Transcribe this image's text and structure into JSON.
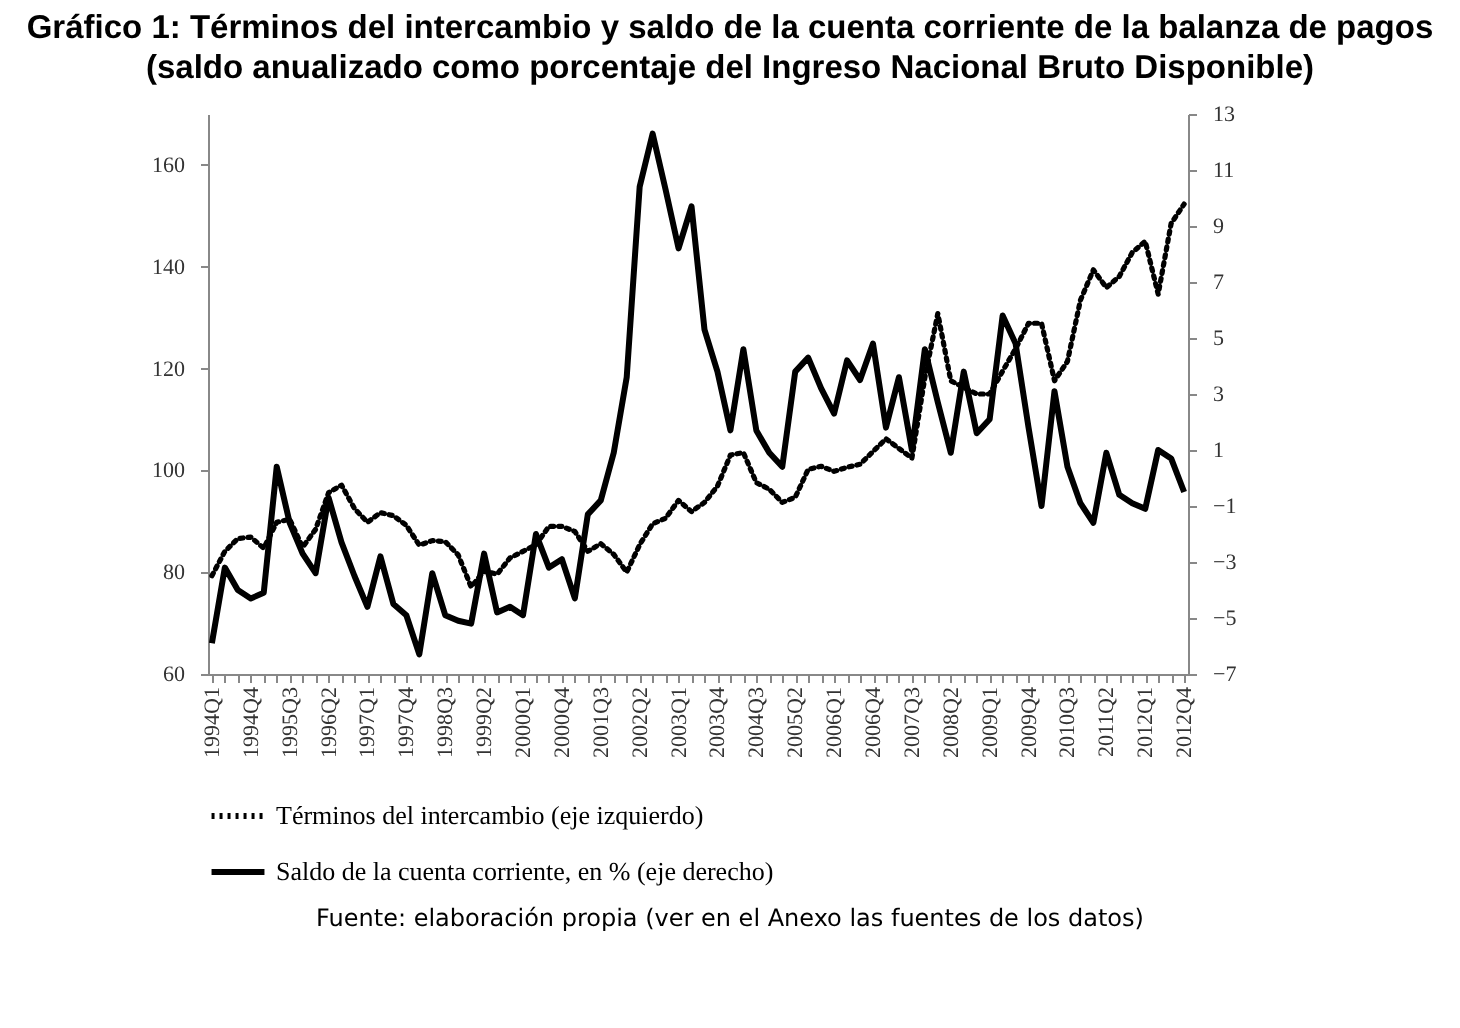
{
  "chart_data": {
    "type": "line",
    "title": "Gráfico 1: Términos del intercambio y saldo de la cuenta corriente de la balanza de pagos (saldo anualizado como porcentaje del Ingreso Nacional Bruto Disponible)",
    "categories": [
      "1994Q1",
      null,
      null,
      "1994Q4",
      null,
      null,
      "1995Q3",
      null,
      null,
      "1996Q2",
      null,
      null,
      "1997Q1",
      null,
      null,
      "1997Q4",
      null,
      null,
      "1998Q3",
      null,
      null,
      "1999Q2",
      null,
      null,
      "2000Q1",
      null,
      null,
      "2000Q4",
      null,
      null,
      "2001Q3",
      null,
      null,
      "2002Q2",
      null,
      null,
      "2003Q1",
      null,
      null,
      "2003Q4",
      null,
      null,
      "2004Q3",
      null,
      null,
      "2005Q2",
      null,
      null,
      "2006Q1",
      null,
      null,
      "2006Q4",
      null,
      null,
      "2007Q3",
      null,
      null,
      "2008Q2",
      null,
      null,
      "2009Q1",
      null,
      null,
      "2009Q4",
      null,
      null,
      "2010Q3",
      null,
      null,
      "2011Q2",
      null,
      null,
      "2012Q1",
      null,
      null,
      "2012Q4"
    ],
    "series": [
      {
        "name": "Términos del intercambio (eje izquierdo)",
        "color": "#000000",
        "line_style": "dotted",
        "values": [
          79.3,
          84.1,
          86.6,
          86.9,
          84.7,
          89.8,
          90.4,
          84.9,
          88.4,
          95.6,
          97.1,
          92.5,
          89.8,
          91.7,
          91.1,
          89.2,
          85.3,
          86.2,
          86.0,
          83.4,
          77.1,
          80.2,
          79.6,
          82.8,
          84.1,
          85.4,
          89.0,
          89.0,
          88.0,
          84.1,
          85.6,
          83.5,
          80.0,
          85.4,
          89.5,
          90.6,
          94.1,
          91.9,
          93.7,
          96.9,
          103.0,
          103.5,
          97.6,
          96.3,
          93.7,
          94.7,
          100.2,
          100.8,
          99.8,
          100.6,
          101.2,
          103.7,
          106.2,
          104.3,
          102.4,
          118.2,
          130.8,
          117.6,
          116.3,
          115.0,
          115.0,
          119.5,
          123.9,
          128.9,
          128.9,
          117.6,
          121.4,
          133.4,
          139.4,
          135.9,
          138.1,
          142.8,
          145.0,
          134.6,
          148.5,
          152.3
        ]
      },
      {
        "name": "Saldo de la cuenta corriente, en % (eje derecho)",
        "color": "#000000",
        "line_style": "solid",
        "axis": "y2",
        "values": [
          -5.9,
          -3.2,
          -4.0,
          -4.3,
          -4.1,
          0.4,
          -1.6,
          -2.7,
          -3.4,
          -0.7,
          -2.3,
          -3.5,
          -4.6,
          -2.8,
          -4.5,
          -4.9,
          -6.3,
          -3.4,
          -4.9,
          -5.1,
          -5.2,
          -2.7,
          -4.8,
          -4.6,
          -4.9,
          -2.0,
          -3.2,
          -2.9,
          -4.3,
          -1.3,
          -0.8,
          0.9,
          3.6,
          10.4,
          12.3,
          10.3,
          8.2,
          9.7,
          5.3,
          3.8,
          1.7,
          4.6,
          1.7,
          0.9,
          0.4,
          3.8,
          4.3,
          3.2,
          2.3,
          4.2,
          3.5,
          4.8,
          1.8,
          3.6,
          1.0,
          4.6,
          2.7,
          0.9,
          3.8,
          1.6,
          2.1,
          5.8,
          4.8,
          1.8,
          -1.0,
          3.1,
          0.4,
          -0.9,
          -1.6,
          0.9,
          -0.6,
          -0.9,
          -1.1,
          1.0,
          0.7,
          -0.5
        ]
      }
    ],
    "ylim": [
      60,
      170
    ],
    "yticks": [
      60,
      80,
      100,
      120,
      140,
      160
    ],
    "y2lim": [
      -7,
      13
    ],
    "y2ticks": [
      -7,
      -5,
      -3,
      -1,
      1,
      3,
      5,
      7,
      9,
      11,
      13
    ],
    "legend": "bottom",
    "grid": false,
    "marker": "none",
    "annotations": [
      "Fuente: elaboración propia (ver en el Anexo las fuentes de los datos)"
    ]
  }
}
